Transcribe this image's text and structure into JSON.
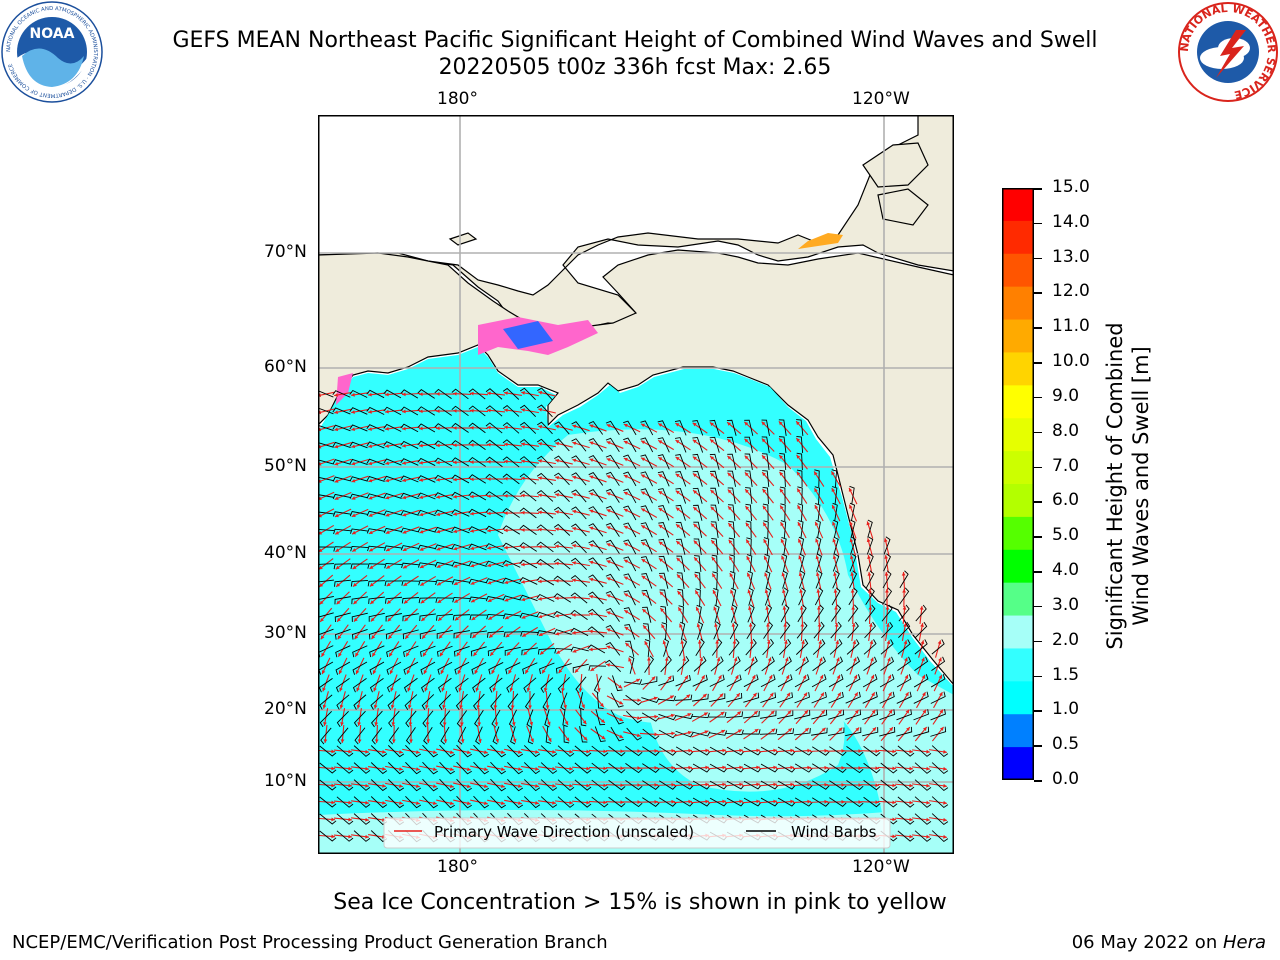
{
  "title_line1": "GEFS MEAN Northeast Pacific Significant Height of Combined Wind Waves and Swell",
  "title_line2": "20220505 t00z 336h fcst   Max: 2.65",
  "noaa_logo_text": "NOAA",
  "noaa_ring_text": "NATIONAL OCEANIC AND ATMOSPHERIC ADMINISTRATION · U.S. DEPARTMENT OF COMMERCE",
  "nws_ring_text": "NATIONAL WEATHER SERVICE",
  "map": {
    "top_ticks": [
      "180°",
      "120°W"
    ],
    "bottom_ticks": [
      "180°",
      "120°W"
    ],
    "lat_ticks": [
      "70°N",
      "60°N",
      "50°N",
      "40°N",
      "30°N",
      "20°N",
      "10°N"
    ],
    "legend": {
      "wave_label": "Primary Wave Direction (unscaled)",
      "wind_label": "Wind Barbs",
      "wave_color": "#e8201c",
      "wind_color": "#000000"
    },
    "colors": {
      "land": "#efecdc",
      "ocean_main": "#33ffff",
      "ocean_light": "#a6fff8",
      "ocean_bright": "#00ffff"
    }
  },
  "colorbar": {
    "label_line1": "Significant Height of Combined",
    "label_line2": "Wind Waves and Swell [m]",
    "ticks": [
      "15.0",
      "14.0",
      "13.0",
      "12.0",
      "11.0",
      "10.0",
      "9.0",
      "8.0",
      "7.0",
      "6.0",
      "5.0",
      "4.0",
      "3.0",
      "2.0",
      "1.5",
      "1.0",
      "0.5",
      "0.0"
    ],
    "colors_top_to_bottom": [
      "#ff0000",
      "#ff2a00",
      "#ff5500",
      "#ff8000",
      "#ffaa00",
      "#ffd400",
      "#ffff00",
      "#e6ff00",
      "#ccff00",
      "#b3ff00",
      "#55ff00",
      "#00ff00",
      "#55ff88",
      "#a6fff8",
      "#33ffff",
      "#00ffff",
      "#0080ff",
      "#0000ff"
    ]
  },
  "note": "Sea Ice Concentration > 15% is shown in pink to yellow",
  "footer_left": "NCEP/EMC/Verification Post Processing Product Generation Branch",
  "footer_date": "06 May 2022 on ",
  "footer_host": "Hera"
}
